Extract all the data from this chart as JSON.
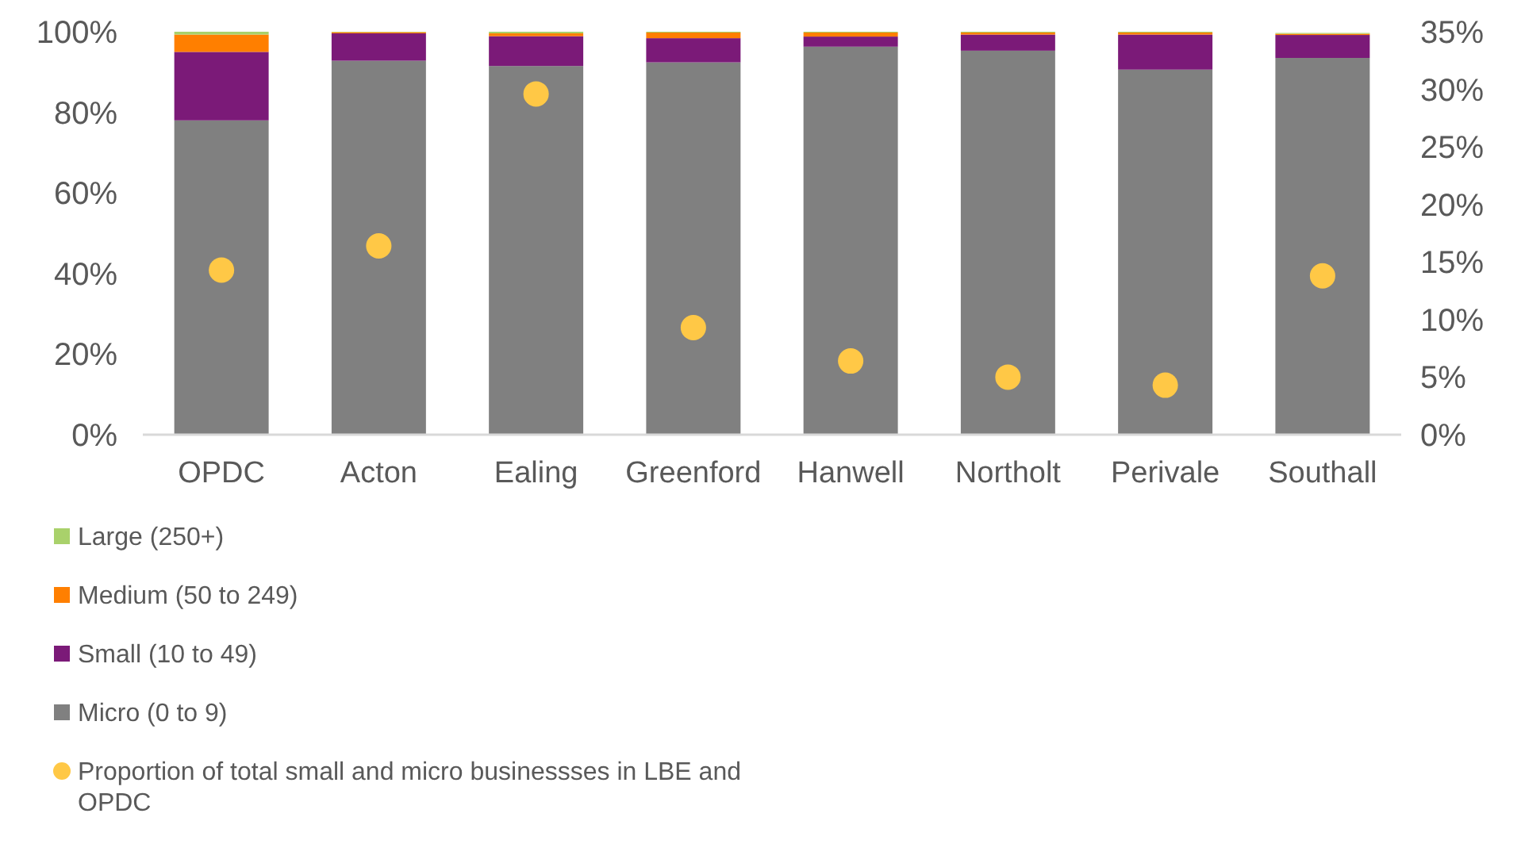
{
  "chart_data": {
    "type": "bar",
    "stacked": true,
    "categories": [
      "OPDC",
      "Acton",
      "Ealing",
      "Greenford",
      "Hanwell",
      "Northolt",
      "Perivale",
      "Southall"
    ],
    "series": [
      {
        "name": "Micro (0 to 9)",
        "color": "#808080",
        "values": [
          78,
          92.8,
          91.5,
          92.4,
          96.3,
          95.3,
          90.6,
          93.5
        ]
      },
      {
        "name": "Small (10 to 49)",
        "color": "#7b1a78",
        "values": [
          17,
          6.8,
          7.4,
          6,
          2.5,
          4,
          8.7,
          5.7
        ]
      },
      {
        "name": "Medium (50 to 249)",
        "color": "#ff7f00",
        "values": [
          4.3,
          0.3,
          0.7,
          1.4,
          1,
          0.5,
          0.5,
          0.3
        ]
      },
      {
        "name": "Large (250+)",
        "color": "#a9d16b",
        "values": [
          0.7,
          0.1,
          0.4,
          0.2,
          0.2,
          0.2,
          0.2,
          0.2
        ]
      },
      {
        "name": "Proportion of total small and micro businessses in LBE and OPDC",
        "color": "#ffc846",
        "type": "scatter",
        "axis": "y2",
        "marker": "circle",
        "values": [
          14.3,
          16.4,
          29.6,
          9.3,
          6.4,
          5,
          4.3,
          13.8
        ]
      }
    ],
    "ylim": [
      0,
      100
    ],
    "yticks": [
      {
        "value": 0,
        "label": "0%"
      },
      {
        "value": 20,
        "label": "20%"
      },
      {
        "value": 40,
        "label": "40%"
      },
      {
        "value": 60,
        "label": "60%"
      },
      {
        "value": 80,
        "label": "80%"
      },
      {
        "value": 100,
        "label": "100%"
      }
    ],
    "y2lim": [
      0,
      35
    ],
    "y2ticks": [
      {
        "value": 0,
        "label": "0%"
      },
      {
        "value": 5,
        "label": "5%"
      },
      {
        "value": 10,
        "label": "10%"
      },
      {
        "value": 15,
        "label": "15%"
      },
      {
        "value": 20,
        "label": "20%"
      },
      {
        "value": 25,
        "label": "25%"
      },
      {
        "value": 30,
        "label": "30%"
      },
      {
        "value": 35,
        "label": "35%"
      }
    ],
    "grid": false,
    "legend": "bottom"
  }
}
